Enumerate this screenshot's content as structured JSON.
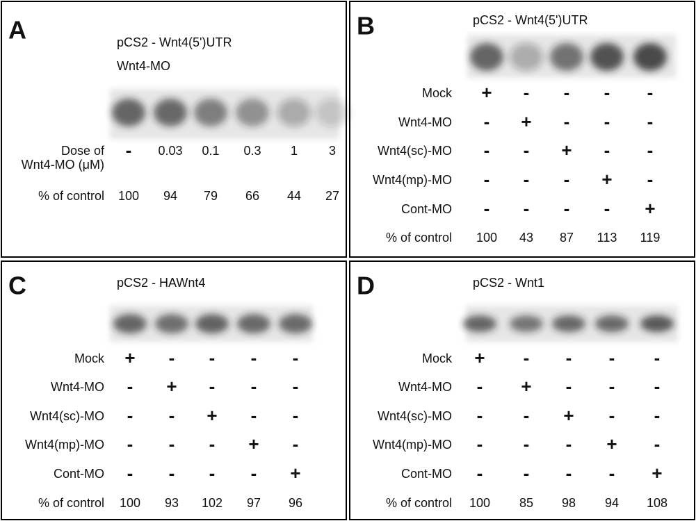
{
  "panels": [
    {
      "letter": "A",
      "title": "pCS2 - Wnt4(5')UTR",
      "subtitle": "Wnt4-MO",
      "rows": [
        {
          "label": [
            "Dose of",
            "Wnt4-MO (μM)"
          ],
          "cells": [
            "-",
            0.03,
            0.1,
            0.3,
            1,
            3
          ]
        },
        {
          "label": [
            "% of control"
          ],
          "cells": [
            100,
            94,
            79,
            66,
            44,
            27
          ]
        }
      ]
    },
    {
      "letter": "B",
      "title": "pCS2 - Wnt4(5')UTR",
      "rows": [
        {
          "label": [
            "Mock"
          ],
          "cells": [
            "+",
            "-",
            "-",
            "-",
            "-"
          ]
        },
        {
          "label": [
            "Wnt4-MO"
          ],
          "cells": [
            "-",
            "+",
            "-",
            "-",
            "-"
          ]
        },
        {
          "label": [
            "Wnt4(sc)-MO"
          ],
          "cells": [
            "-",
            "-",
            "+",
            "-",
            "-"
          ]
        },
        {
          "label": [
            "Wnt4(mp)-MO"
          ],
          "cells": [
            "-",
            "-",
            "-",
            "+",
            "-"
          ]
        },
        {
          "label": [
            "Cont-MO"
          ],
          "cells": [
            "-",
            "-",
            "-",
            "-",
            "+"
          ]
        },
        {
          "label": [
            "% of control"
          ],
          "cells": [
            100,
            43,
            87,
            113,
            119
          ]
        }
      ]
    },
    {
      "letter": "C",
      "title": "pCS2 - HAWnt4",
      "rows": [
        {
          "label": [
            "Mock"
          ],
          "cells": [
            "+",
            "-",
            "-",
            "-",
            "-"
          ]
        },
        {
          "label": [
            "Wnt4-MO"
          ],
          "cells": [
            "-",
            "+",
            "-",
            "-",
            "-"
          ]
        },
        {
          "label": [
            "Wnt4(sc)-MO"
          ],
          "cells": [
            "-",
            "-",
            "+",
            "-",
            "-"
          ]
        },
        {
          "label": [
            "Wnt4(mp)-MO"
          ],
          "cells": [
            "-",
            "-",
            "-",
            "+",
            "-"
          ]
        },
        {
          "label": [
            "Cont-MO"
          ],
          "cells": [
            "-",
            "-",
            "-",
            "-",
            "+"
          ]
        },
        {
          "label": [
            "% of control"
          ],
          "cells": [
            100,
            93,
            102,
            97,
            96
          ]
        }
      ]
    },
    {
      "letter": "D",
      "title": "pCS2 - Wnt1",
      "rows": [
        {
          "label": [
            "Mock"
          ],
          "cells": [
            "+",
            "-",
            "-",
            "-",
            "-"
          ]
        },
        {
          "label": [
            "Wnt4-MO"
          ],
          "cells": [
            "-",
            "+",
            "-",
            "-",
            "-"
          ]
        },
        {
          "label": [
            "Wnt4(sc)-MO"
          ],
          "cells": [
            "-",
            "-",
            "+",
            "-",
            "-"
          ]
        },
        {
          "label": [
            "Wnt4(mp)-MO"
          ],
          "cells": [
            "-",
            "-",
            "-",
            "+",
            "-"
          ]
        },
        {
          "label": [
            "Cont-MO"
          ],
          "cells": [
            "-",
            "-",
            "-",
            "-",
            "+"
          ]
        },
        {
          "label": [
            "% of control"
          ],
          "cells": [
            100,
            85,
            98,
            94,
            108
          ]
        }
      ]
    }
  ]
}
